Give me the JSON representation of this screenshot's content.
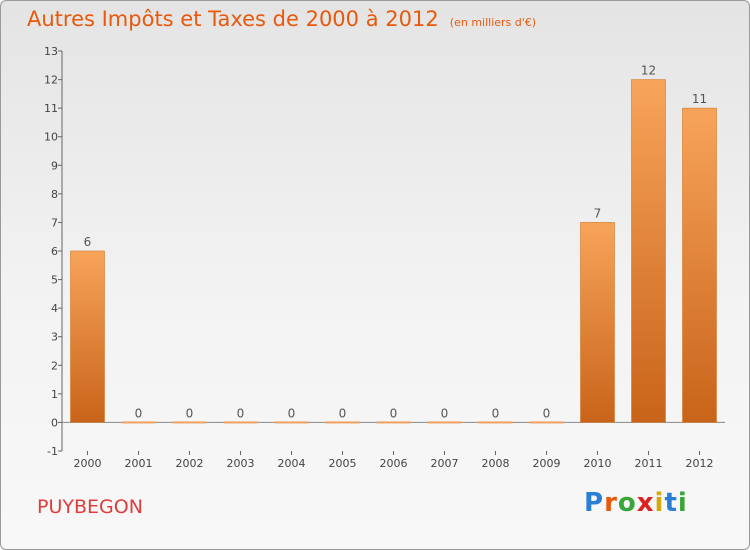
{
  "title": "Autres Impôts et Taxes de 2000 à 2012",
  "subtitle": "(en milliers d'€)",
  "commune": "PUYBEGON",
  "brand": {
    "letters": [
      "P",
      "r",
      "o",
      "x",
      "i",
      "t",
      "i"
    ],
    "colors": [
      "#2a7fd4",
      "#e8590c",
      "#3aa63a",
      "#e02020",
      "#d4a90a",
      "#2a7fd4",
      "#3aa63a"
    ]
  },
  "chart_data": {
    "type": "bar",
    "categories": [
      "2000",
      "2001",
      "2002",
      "2003",
      "2004",
      "2005",
      "2006",
      "2007",
      "2008",
      "2009",
      "2010",
      "2011",
      "2012"
    ],
    "values": [
      6,
      0,
      0,
      0,
      0,
      0,
      0,
      0,
      0,
      0,
      7,
      12,
      11
    ],
    "ylim": [
      -1,
      13
    ],
    "yticks": [
      -1,
      0,
      1,
      2,
      3,
      4,
      5,
      6,
      7,
      8,
      9,
      10,
      11,
      12,
      13
    ],
    "grid": false,
    "bar_color": "#f0922e",
    "bar_color_dark": "#c8641a"
  }
}
